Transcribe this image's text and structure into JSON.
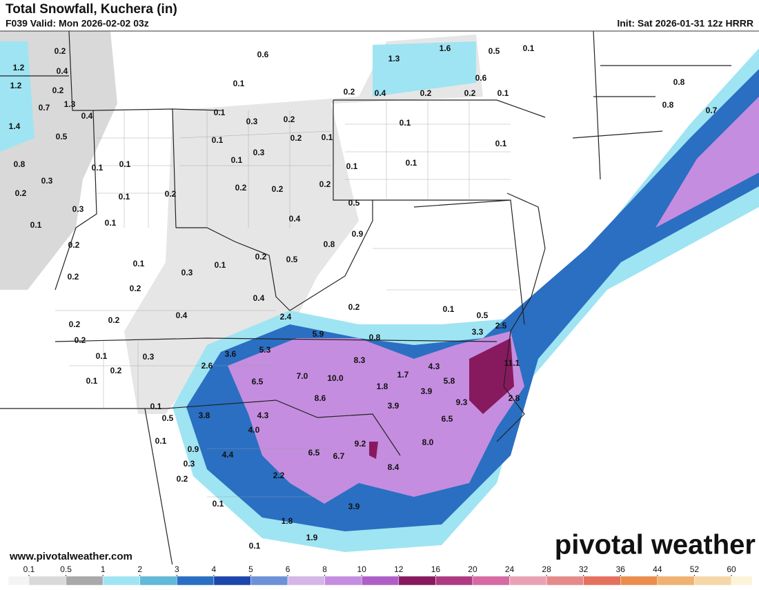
{
  "header": {
    "title": "Total Snowfall, Kuchera (in)",
    "valid": "F039 Valid: Mon 2026-02-02 03z",
    "init": "Init: Sat 2026-01-31 12z HRRR"
  },
  "map": {
    "labels": [
      "0.2",
      "0.6",
      "0.1",
      "1.6",
      "0.5",
      "1.3",
      "1.2",
      "0.4",
      "0.1",
      "0.6",
      "0.2",
      "0.4",
      "0.2",
      "0.2",
      "0.1",
      "0.8",
      "1.2",
      "0.2",
      "1.3",
      "0.7",
      "0.4",
      "0.1",
      "0.3",
      "0.2",
      "0.1",
      "0.8",
      "0.7",
      "1.4",
      "0.5",
      "0.1",
      "0.2",
      "0.1",
      "0.1",
      "0.3",
      "0.1",
      "0.8",
      "0.1",
      "0.1",
      "0.1",
      "0.1",
      "0.3",
      "0.2",
      "0.2",
      "0.2",
      "0.2",
      "0.1",
      "0.2",
      "0.5",
      "0.3",
      "0.1",
      "0.1",
      "0.4",
      "0.9",
      "0.8",
      "0.2",
      "0.2",
      "0.5",
      "0.1",
      "0.1",
      "0.3",
      "0.2",
      "0.2",
      "0.4",
      "0.2",
      "0.1",
      "2.4",
      "0.5",
      "0.2",
      "0.2",
      "0.4",
      "2.5",
      "3.3",
      "5.9",
      "0.8",
      "0.2",
      "5.3",
      "3.6",
      "0.1",
      "0.3",
      "8.3",
      "11.1",
      "2.6",
      "4.3",
      "0.2",
      "7.0",
      "10.0",
      "1.7",
      "6.5",
      "0.1",
      "5.8",
      "1.8",
      "3.9",
      "8.6",
      "9.3",
      "2.8",
      "0.1",
      "3.9",
      "3.8",
      "0.5",
      "4.3",
      "6.5",
      "4.0",
      "0.1",
      "8.0",
      "9.2",
      "0.9",
      "4.4",
      "6.5",
      "6.7",
      "0.3",
      "8.4",
      "0.2",
      "2.2",
      "0.1",
      "3.9",
      "1.8",
      "1.9",
      "0.1"
    ]
  },
  "legend": {
    "ticks": [
      0.1,
      0.5,
      1,
      2,
      3,
      4,
      5,
      6,
      8,
      10,
      12,
      16,
      20,
      24,
      28,
      32,
      36,
      44,
      52,
      60
    ],
    "colors": [
      "#f4f4f4",
      "#d9d9d9",
      "#a9a9a9",
      "#9fe4f2",
      "#62b9d8",
      "#2a6fc2",
      "#1c46ac",
      "#6c91d8",
      "#d4b6e8",
      "#c58ddf",
      "#ae5fc6",
      "#871a5e",
      "#ad3a82",
      "#d66aa2",
      "#e9a2b4",
      "#e58a8a",
      "#e6705e",
      "#e98e4c",
      "#f0b272",
      "#f5d7a8",
      "#fbf4d8"
    ]
  },
  "footer": {
    "website": "www.pivotalweather.com",
    "logo": "pivotal weather"
  }
}
